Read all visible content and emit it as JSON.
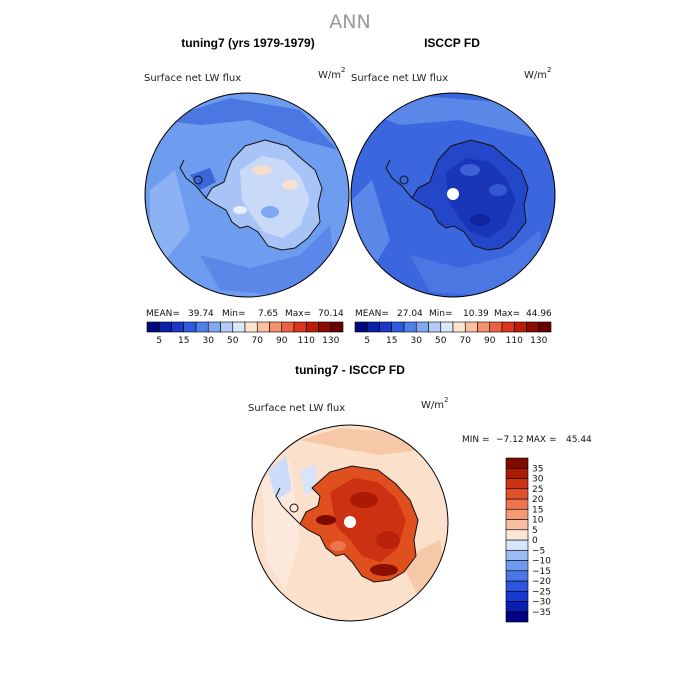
{
  "figure": {
    "title": "ANN",
    "unit": "W/m",
    "unit_sup": "2"
  },
  "panels": {
    "top_left": {
      "heading": "tuning7 (yrs 1979-1979)",
      "variable": "Surface net LW flux",
      "stats": {
        "mean_label": "MEAN=",
        "mean": "39.74",
        "min_label": "Min=",
        "min": "7.65",
        "max_label": "Max=",
        "max": "70.14"
      }
    },
    "top_right": {
      "heading": "ISCCP FD",
      "variable": "Surface net LW flux",
      "stats": {
        "mean_label": "MEAN=",
        "mean": "27.04",
        "min_label": "Min=",
        "min": "10.39",
        "max_label": "Max=",
        "max": "44.96"
      }
    },
    "bottom": {
      "heading": "tuning7 - ISCCP FD",
      "variable": "Surface net LW flux",
      "stats": {
        "min_label": "MIN =",
        "min": "−7.12",
        "max_label": "MAX =",
        "max": "45.44"
      }
    }
  },
  "chart_data": [
    {
      "type": "heatmap",
      "projection": "south-polar-stereographic",
      "title": "tuning7 (yrs 1979-1979)",
      "subtitle": "Surface net LW flux",
      "units": "W/m2",
      "summary": {
        "mean": 39.74,
        "min": 7.65,
        "max": 70.14
      },
      "colorbar": {
        "orientation": "horizontal",
        "levels": [
          5,
          10,
          15,
          20,
          30,
          40,
          50,
          60,
          70,
          80,
          90,
          100,
          110,
          120,
          130
        ],
        "tick_labels": [
          "5",
          "15",
          "30",
          "50",
          "70",
          "90",
          "110",
          "130"
        ],
        "colors": [
          "#000a7e",
          "#0a1fa6",
          "#1838c8",
          "#2e5be0",
          "#5080e8",
          "#7fa8f0",
          "#b0ccf7",
          "#dbe8fb",
          "#fbe3d2",
          "#f8c0a0",
          "#f49070",
          "#ec6040",
          "#d8361a",
          "#b81e08",
          "#8c0c02",
          "#640000"
        ]
      }
    },
    {
      "type": "heatmap",
      "projection": "south-polar-stereographic",
      "title": "ISCCP FD",
      "subtitle": "Surface net LW flux",
      "units": "W/m2",
      "summary": {
        "mean": 27.04,
        "min": 10.39,
        "max": 44.96
      },
      "colorbar": {
        "orientation": "horizontal",
        "levels": [
          5,
          10,
          15,
          20,
          30,
          40,
          50,
          60,
          70,
          80,
          90,
          100,
          110,
          120,
          130
        ],
        "tick_labels": [
          "5",
          "15",
          "30",
          "50",
          "70",
          "90",
          "110",
          "130"
        ],
        "colors": [
          "#000a7e",
          "#0a1fa6",
          "#1838c8",
          "#2e5be0",
          "#5080e8",
          "#7fa8f0",
          "#b0ccf7",
          "#dbe8fb",
          "#fbe3d2",
          "#f8c0a0",
          "#f49070",
          "#ec6040",
          "#d8361a",
          "#b81e08",
          "#8c0c02",
          "#640000"
        ]
      }
    },
    {
      "type": "heatmap",
      "projection": "south-polar-stereographic",
      "title": "tuning7 - ISCCP FD",
      "subtitle": "Surface net LW flux",
      "units": "W/m2",
      "summary": {
        "min": -7.12,
        "max": 45.44
      },
      "colorbar": {
        "orientation": "vertical",
        "levels": [
          -35,
          -30,
          -25,
          -20,
          -15,
          -10,
          -5,
          0,
          5,
          10,
          15,
          20,
          25,
          30,
          35
        ],
        "tick_labels": [
          "−35",
          "−30",
          "−25",
          "−20",
          "−15",
          "−10",
          "−5",
          "0",
          "5",
          "10",
          "15",
          "20",
          "25",
          "30",
          "35"
        ],
        "colors": [
          "#000080",
          "#0a1fb0",
          "#1838d0",
          "#2e55e0",
          "#4a78e8",
          "#6f9af0",
          "#9dbcf5",
          "#d6e6fb",
          "#fce6d6",
          "#f8c0a0",
          "#f49a75",
          "#ee7450",
          "#e2512e",
          "#cc3315",
          "#aa1a05",
          "#7e0a00"
        ]
      }
    }
  ]
}
